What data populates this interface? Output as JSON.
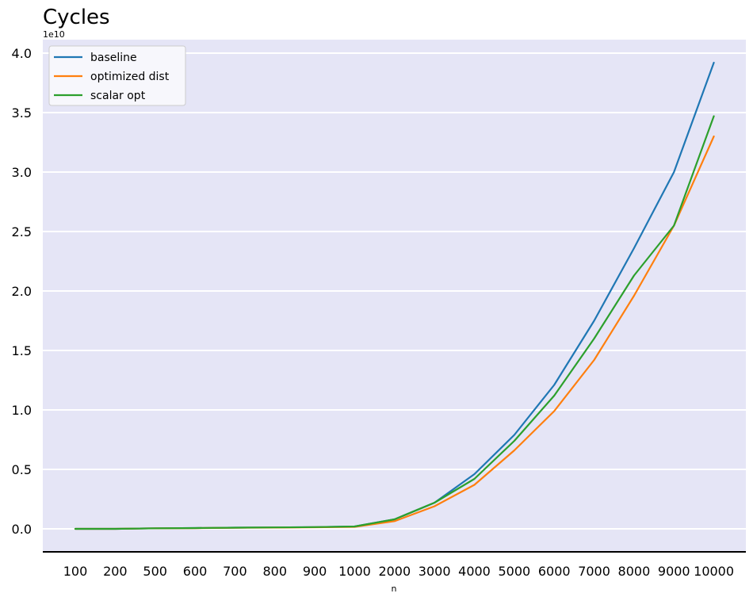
{
  "chart_data": {
    "type": "line",
    "title": "Cycles",
    "xlabel": "n",
    "ylabel": "",
    "y_exponent_label": "1e10",
    "categories": [
      "100",
      "200",
      "500",
      "600",
      "700",
      "800",
      "900",
      "1000",
      "2000",
      "3000",
      "4000",
      "5000",
      "6000",
      "7000",
      "8000",
      "9000",
      "10000"
    ],
    "yticks": [
      0.0,
      0.5,
      1.0,
      1.5,
      2.0,
      2.5,
      3.0,
      3.5,
      4.0
    ],
    "ytick_labels": [
      "0.0",
      "0.5",
      "1.0",
      "1.5",
      "2.0",
      "2.5",
      "3.0",
      "3.5",
      "4.0"
    ],
    "ylim": [
      -0.19,
      4.1
    ],
    "grid": "horizontal",
    "legend_position": "top-left",
    "series": [
      {
        "name": "baseline",
        "color": "#1f77b4",
        "values": [
          0.0,
          0.0,
          0.005,
          0.007,
          0.01,
          0.012,
          0.015,
          0.02,
          0.08,
          0.22,
          0.46,
          0.79,
          1.21,
          1.75,
          2.36,
          3.0,
          3.92
        ]
      },
      {
        "name": "optimized dist",
        "color": "#ff7f0e",
        "values": [
          0.0,
          0.0,
          0.005,
          0.006,
          0.009,
          0.011,
          0.013,
          0.017,
          0.065,
          0.19,
          0.37,
          0.66,
          0.99,
          1.42,
          1.96,
          2.55,
          3.3
        ]
      },
      {
        "name": "scalar opt",
        "color": "#2ca02c",
        "values": [
          0.0,
          0.0,
          0.005,
          0.007,
          0.01,
          0.012,
          0.015,
          0.02,
          0.08,
          0.22,
          0.42,
          0.74,
          1.12,
          1.6,
          2.13,
          2.55,
          3.47
        ]
      }
    ],
    "plot_background": "#e5e5f6",
    "grid_color": "#ffffff"
  }
}
